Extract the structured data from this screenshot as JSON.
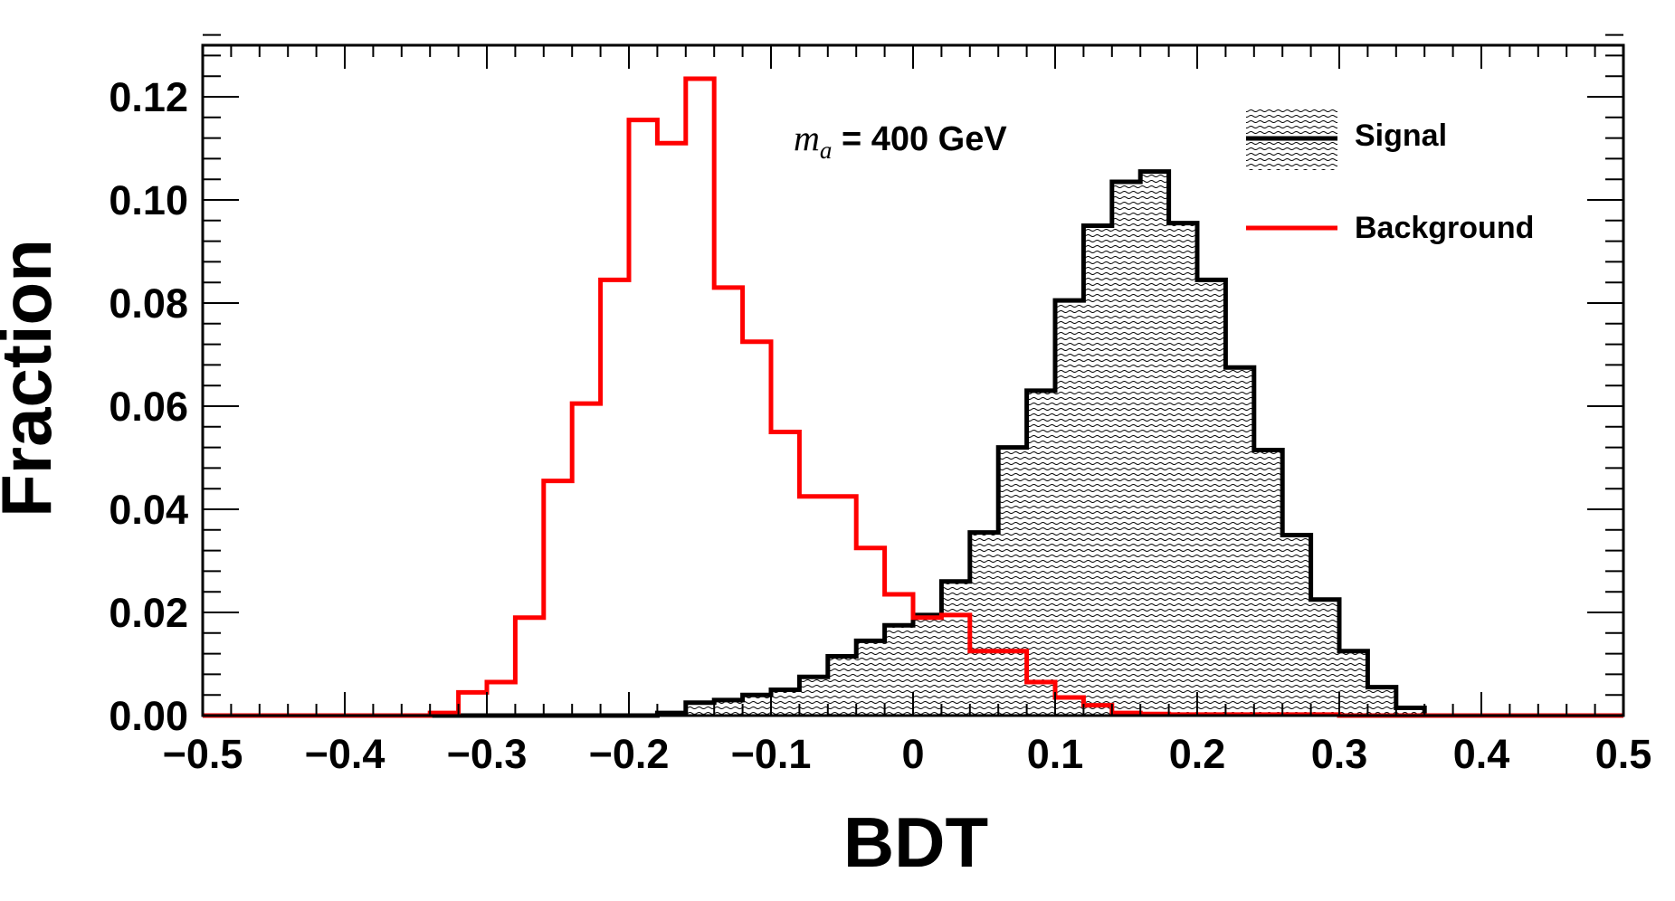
{
  "chart_data": {
    "type": "histogram",
    "xlabel": "BDT",
    "ylabel": "Fraction",
    "xlim": [
      -0.5,
      0.5
    ],
    "ylim": [
      0,
      0.13
    ],
    "x_ticks": [
      -0.5,
      -0.4,
      -0.3,
      -0.2,
      -0.1,
      0,
      0.1,
      0.2,
      0.3,
      0.4,
      0.5
    ],
    "x_tick_labels": [
      "−0.5",
      "−0.4",
      "−0.3",
      "−0.2",
      "−0.1",
      "0",
      "0.1",
      "0.2",
      "0.3",
      "0.4",
      "0.5"
    ],
    "y_ticks": [
      0,
      0.02,
      0.04,
      0.06,
      0.08,
      0.1,
      0.12
    ],
    "y_tick_labels": [
      "0.00",
      "0.02",
      "0.04",
      "0.06",
      "0.08",
      "0.10",
      "0.12"
    ],
    "annotation": {
      "symbol": "m",
      "subscript": "a",
      "text": " = 400 GeV"
    },
    "legend_position": "top-right",
    "bin_edges": [
      -0.5,
      -0.48,
      -0.46,
      -0.44,
      -0.42,
      -0.4,
      -0.38,
      -0.36,
      -0.34,
      -0.32,
      -0.3,
      -0.28,
      -0.26,
      -0.24,
      -0.22,
      -0.2,
      -0.18,
      -0.16,
      -0.14,
      -0.12,
      -0.1,
      -0.08,
      -0.06,
      -0.04,
      -0.02,
      0,
      0.02,
      0.04,
      0.06,
      0.08,
      0.1,
      0.12,
      0.14,
      0.16,
      0.18,
      0.2,
      0.22,
      0.24,
      0.26,
      0.28,
      0.3,
      0.32,
      0.34,
      0.36,
      0.38,
      0.4,
      0.42,
      0.44,
      0.46,
      0.48,
      0.5
    ],
    "series": [
      {
        "name": "Signal",
        "color": "#000000",
        "fill": "hatched",
        "values": [
          0,
          0,
          0,
          0,
          0,
          0,
          0,
          0,
          0,
          0,
          0,
          0,
          0,
          0,
          0,
          0,
          0.0005,
          0.0025,
          0.003,
          0.004,
          0.005,
          0.0075,
          0.0115,
          0.0145,
          0.0175,
          0.0195,
          0.026,
          0.0355,
          0.052,
          0.063,
          0.0805,
          0.095,
          0.1035,
          0.1055,
          0.0955,
          0.0845,
          0.0675,
          0.0515,
          0.035,
          0.0225,
          0.0125,
          0.0055,
          0.0015,
          0,
          0,
          0,
          0,
          0,
          0,
          0
        ]
      },
      {
        "name": "Background",
        "color": "#ff0000",
        "fill": "none",
        "values": [
          0,
          0,
          0,
          0,
          0,
          0,
          0,
          0,
          0.0005,
          0.0045,
          0.0065,
          0.019,
          0.0455,
          0.0605,
          0.0845,
          0.1155,
          0.111,
          0.1235,
          0.083,
          0.0725,
          0.055,
          0.0425,
          0.0425,
          0.0325,
          0.0235,
          0.019,
          0.0195,
          0.0125,
          0.0125,
          0.0065,
          0.0035,
          0.002,
          0.0005,
          0.0003,
          0.0002,
          0.0002,
          0.0002,
          0.0002,
          0.0002,
          0.0002,
          0,
          0,
          0,
          0,
          0,
          0,
          0,
          0,
          0,
          0
        ]
      }
    ]
  }
}
